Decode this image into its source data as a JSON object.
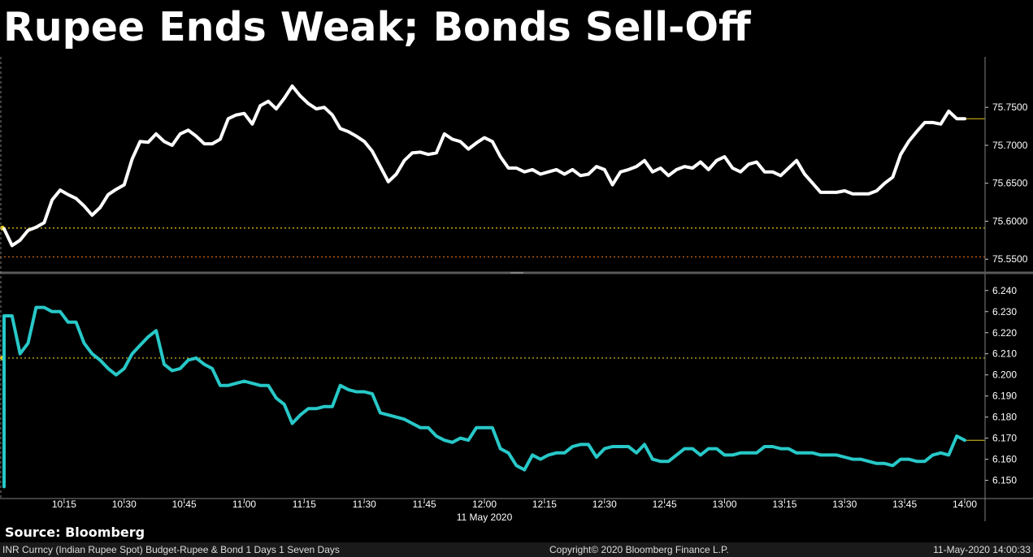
{
  "title": "Rupee Ends Weak; Bonds Sell-Off",
  "source": "Source: Bloomberg",
  "footer": {
    "left": "INR Curncy (Indian Rupee Spot) Budget-Rupee & Bond 1 Days 1 Seven Days",
    "center": "Copyright© 2020 Bloomberg Finance L.P.",
    "right": "11-May-2020 14:00:33"
  },
  "colors": {
    "rupee": "#ffffff",
    "bond": "#28c8c8",
    "ref_line": "#e6c619",
    "prev_line": "#c86a1e",
    "grid": "#808080"
  },
  "chart_data": [
    {
      "type": "line",
      "series": [
        {
          "x": [
            "10:00",
            "10:02",
            "10:04",
            "10:06",
            "10:08",
            "10:10",
            "10:12",
            "10:14",
            "10:16",
            "10:18",
            "10:20",
            "10:22",
            "10:24",
            "10:26",
            "10:28",
            "10:30",
            "10:32",
            "10:34",
            "10:36",
            "10:38",
            "10:40",
            "10:42",
            "10:44",
            "10:46",
            "10:48",
            "10:50",
            "10:52",
            "10:54",
            "10:56",
            "10:58",
            "11:00",
            "11:02",
            "11:04",
            "11:06",
            "11:08",
            "11:10",
            "11:12",
            "11:14",
            "11:16",
            "11:18",
            "11:20",
            "11:22",
            "11:24",
            "11:26",
            "11:28",
            "11:30",
            "11:32",
            "11:34",
            "11:36",
            "11:38",
            "11:40",
            "11:42",
            "11:44",
            "11:46",
            "11:48",
            "11:50",
            "11:52",
            "11:54",
            "11:56",
            "11:58",
            "12:00",
            "12:02",
            "12:04",
            "12:06",
            "12:08",
            "12:10",
            "12:12",
            "12:14",
            "12:16",
            "12:18",
            "12:20",
            "12:22",
            "12:24",
            "12:26",
            "12:28",
            "12:30",
            "12:32",
            "12:34",
            "12:36",
            "12:38",
            "12:40",
            "12:42",
            "12:44",
            "12:46",
            "12:48",
            "12:50",
            "12:52",
            "12:54",
            "12:56",
            "12:58",
            "13:00",
            "13:02",
            "13:04",
            "13:06",
            "13:08",
            "13:10",
            "13:12",
            "13:14",
            "13:16",
            "13:18",
            "13:20",
            "13:22",
            "13:24",
            "13:26",
            "13:28",
            "13:30",
            "13:32",
            "13:34",
            "13:36",
            "13:38",
            "13:40",
            "13:42",
            "13:44",
            "13:46",
            "13:48",
            "13:50",
            "13:52",
            "13:54",
            "13:56",
            "13:58",
            "14:00"
          ],
          "values": [
            75.59,
            75.568,
            75.575,
            75.588,
            75.592,
            75.598,
            75.628,
            75.641,
            75.635,
            75.63,
            75.62,
            75.608,
            75.618,
            75.635,
            75.642,
            75.648,
            75.682,
            75.705,
            75.704,
            75.715,
            75.705,
            75.7,
            75.715,
            75.72,
            75.712,
            75.702,
            75.702,
            75.708,
            75.735,
            75.74,
            75.742,
            75.728,
            75.752,
            75.758,
            75.748,
            75.762,
            75.778,
            75.765,
            75.755,
            75.748,
            75.75,
            75.74,
            75.722,
            75.718,
            75.712,
            75.705,
            75.692,
            75.672,
            75.652,
            75.662,
            75.68,
            75.69,
            75.691,
            75.688,
            75.69,
            75.715,
            75.708,
            75.705,
            75.695,
            75.703,
            75.71,
            75.705,
            75.685,
            75.67,
            75.67,
            75.665,
            75.668,
            75.662,
            75.665,
            75.668,
            75.662,
            75.668,
            75.66,
            75.662,
            75.672,
            75.668,
            75.648,
            75.665,
            75.668,
            75.672,
            75.68,
            75.665,
            75.67,
            75.66,
            75.668,
            75.672,
            75.67,
            75.678,
            75.668,
            75.68,
            75.685,
            75.67,
            75.665,
            75.675,
            75.678,
            75.665,
            75.665,
            75.66,
            75.67,
            75.68,
            75.662,
            75.65,
            75.638,
            75.638,
            75.638,
            75.64,
            75.636,
            75.636,
            75.636,
            75.64,
            75.65,
            75.658,
            75.688,
            75.705,
            75.718,
            75.73,
            75.73,
            75.728,
            75.745,
            75.735,
            75.735
          ],
          "last": 75.735
        }
      ],
      "y_ticks": [
        "75.5500",
        "75.6000",
        "75.6500",
        "75.7000",
        "75.7500"
      ],
      "ylim": [
        75.547,
        75.793
      ],
      "reference_line": 75.591,
      "previous_close_line": 75.553
    },
    {
      "type": "line",
      "series": [
        {
          "x": [
            "10:00",
            "10:02",
            "10:04",
            "10:06",
            "10:08",
            "10:10",
            "10:12",
            "10:14",
            "10:16",
            "10:18",
            "10:20",
            "10:22",
            "10:24",
            "10:26",
            "10:28",
            "10:30",
            "10:32",
            "10:34",
            "10:36",
            "10:38",
            "10:40",
            "10:42",
            "10:44",
            "10:46",
            "10:48",
            "10:50",
            "10:52",
            "10:54",
            "10:56",
            "10:58",
            "11:00",
            "11:02",
            "11:04",
            "11:06",
            "11:08",
            "11:10",
            "11:12",
            "11:14",
            "11:16",
            "11:18",
            "11:20",
            "11:22",
            "11:24",
            "11:26",
            "11:28",
            "11:30",
            "11:32",
            "11:34",
            "11:36",
            "11:38",
            "11:40",
            "11:42",
            "11:44",
            "11:46",
            "11:48",
            "11:50",
            "11:52",
            "11:54",
            "11:56",
            "11:58",
            "12:00",
            "12:02",
            "12:04",
            "12:06",
            "12:08",
            "12:10",
            "12:12",
            "12:14",
            "12:16",
            "12:18",
            "12:20",
            "12:22",
            "12:24",
            "12:26",
            "12:28",
            "12:30",
            "12:32",
            "12:34",
            "12:36",
            "12:38",
            "12:40",
            "12:42",
            "12:44",
            "12:46",
            "12:48",
            "12:50",
            "12:52",
            "12:54",
            "12:56",
            "12:58",
            "13:00",
            "13:02",
            "13:04",
            "13:06",
            "13:08",
            "13:10",
            "13:12",
            "13:14",
            "13:16",
            "13:18",
            "13:20",
            "13:22",
            "13:24",
            "13:26",
            "13:28",
            "13:30",
            "13:32",
            "13:34",
            "13:36",
            "13:38",
            "13:40",
            "13:42",
            "13:44",
            "13:46",
            "13:48",
            "13:50",
            "13:52",
            "13:54",
            "13:56",
            "13:58",
            "14:00"
          ],
          "values": [
            6.228,
            6.228,
            6.21,
            6.215,
            6.232,
            6.232,
            6.23,
            6.23,
            6.225,
            6.225,
            6.215,
            6.21,
            6.207,
            6.203,
            6.2,
            6.203,
            6.21,
            6.214,
            6.218,
            6.221,
            6.205,
            6.202,
            6.203,
            6.207,
            6.208,
            6.205,
            6.203,
            6.195,
            6.195,
            6.196,
            6.197,
            6.196,
            6.195,
            6.195,
            6.189,
            6.186,
            6.177,
            6.181,
            6.184,
            6.184,
            6.185,
            6.185,
            6.195,
            6.193,
            6.192,
            6.192,
            6.191,
            6.182,
            6.181,
            6.18,
            6.179,
            6.177,
            6.175,
            6.175,
            6.171,
            6.169,
            6.168,
            6.17,
            6.169,
            6.175,
            6.175,
            6.175,
            6.165,
            6.163,
            6.157,
            6.155,
            6.162,
            6.16,
            6.162,
            6.163,
            6.163,
            6.166,
            6.167,
            6.167,
            6.161,
            6.165,
            6.166,
            6.166,
            6.166,
            6.163,
            6.167,
            6.16,
            6.159,
            6.159,
            6.162,
            6.165,
            6.165,
            6.162,
            6.165,
            6.165,
            6.162,
            6.162,
            6.163,
            6.163,
            6.163,
            6.166,
            6.166,
            6.165,
            6.165,
            6.163,
            6.163,
            6.163,
            6.162,
            6.162,
            6.162,
            6.161,
            6.16,
            6.16,
            6.159,
            6.158,
            6.158,
            6.157,
            6.16,
            6.16,
            6.159,
            6.159,
            6.162,
            6.163,
            6.162,
            6.171,
            6.169
          ],
          "last": 6.169
        }
      ],
      "y_ticks": [
        "6.150",
        "6.160",
        "6.170",
        "6.180",
        "6.190",
        "6.200",
        "6.210",
        "6.220",
        "6.230",
        "6.240"
      ],
      "ylim": [
        6.146,
        6.243
      ],
      "reference_line": 6.208
    }
  ],
  "x_axis": {
    "ticks": [
      "10:15",
      "10:30",
      "10:45",
      "11:00",
      "11:15",
      "11:30",
      "11:45",
      "12:00",
      "12:15",
      "12:30",
      "12:45",
      "13:00",
      "13:15",
      "13:30",
      "13:45",
      "14:00"
    ],
    "date_label": "11 May 2020"
  }
}
